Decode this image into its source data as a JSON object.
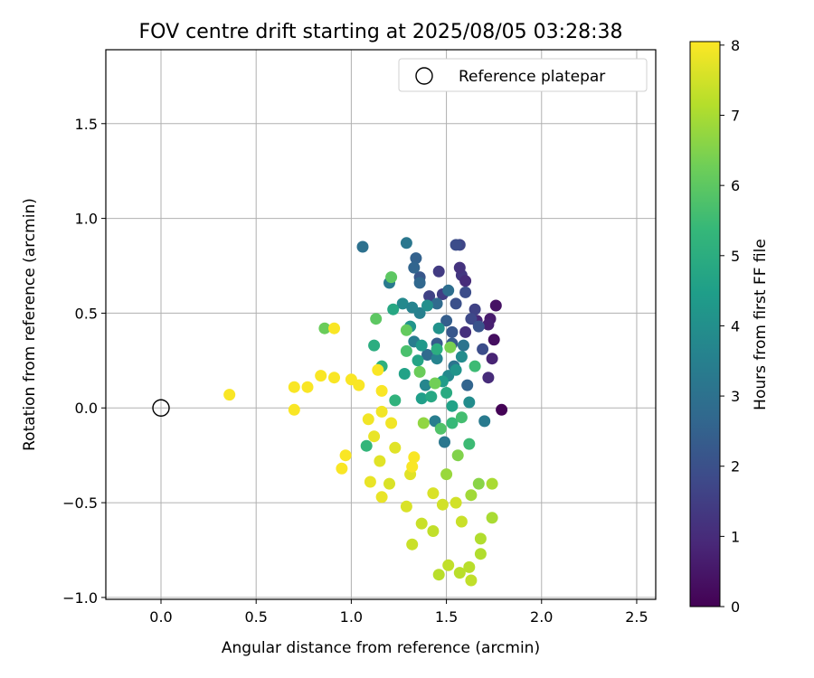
{
  "chart_data": {
    "type": "scatter",
    "title": "FOV centre drift starting at 2025/08/05 03:28:38",
    "xlabel": "Angular distance from reference (arcmin)",
    "ylabel": "Rotation from reference (arcmin)",
    "xlim": [
      -0.29,
      2.6
    ],
    "ylim": [
      -1.01,
      1.89
    ],
    "xticks": [
      0.0,
      0.5,
      1.0,
      1.5,
      2.0,
      2.5
    ],
    "xtick_labels": [
      "0.0",
      "0.5",
      "1.0",
      "1.5",
      "2.0",
      "2.5"
    ],
    "yticks": [
      -1.0,
      -0.5,
      0.0,
      0.5,
      1.0,
      1.5
    ],
    "ytick_labels": [
      "−1.0",
      "−0.5",
      "0.0",
      "0.5",
      "1.0",
      "1.5"
    ],
    "grid": true,
    "legend": {
      "location": "upper right",
      "entries": [
        "Reference platepar"
      ]
    },
    "reference_point": {
      "label": "Reference platepar",
      "x": 0.0,
      "y": 0.0,
      "marker": "open-circle"
    },
    "colorbar": {
      "label": "Hours from first FF file",
      "min": 0,
      "max": 8.05,
      "ticks": [
        0,
        1,
        2,
        3,
        4,
        5,
        6,
        7,
        8
      ],
      "tick_labels": [
        "0",
        "1",
        "2",
        "3",
        "4",
        "5",
        "6",
        "7",
        "8"
      ],
      "colormap": "viridis",
      "colormap_stops": [
        "#440154",
        "#482878",
        "#3e4989",
        "#31688e",
        "#26828e",
        "#1f9e89",
        "#35b779",
        "#6ece58",
        "#b5de2b",
        "#fde725"
      ]
    },
    "series": [
      {
        "color_by": "hours",
        "points": [
          [
            1.79,
            -0.01,
            0.05
          ],
          [
            1.75,
            0.36,
            0.3
          ],
          [
            1.76,
            0.54,
            0.4
          ],
          [
            1.73,
            0.47,
            0.6
          ],
          [
            1.72,
            0.44,
            0.7
          ],
          [
            1.74,
            0.26,
            0.8
          ],
          [
            1.72,
            0.16,
            1.0
          ],
          [
            1.66,
            0.46,
            0.9
          ],
          [
            1.6,
            0.4,
            1.1
          ],
          [
            1.58,
            0.7,
            1.3
          ],
          [
            1.57,
            0.74,
            1.2
          ],
          [
            1.6,
            0.67,
            1.0
          ],
          [
            1.46,
            0.72,
            1.4
          ],
          [
            1.41,
            0.59,
            1.6
          ],
          [
            1.48,
            0.6,
            1.5
          ],
          [
            1.57,
            0.86,
            1.7
          ],
          [
            1.55,
            0.86,
            1.9
          ],
          [
            1.65,
            0.52,
            1.6
          ],
          [
            1.63,
            0.47,
            1.8
          ],
          [
            1.55,
            0.55,
            2.0
          ],
          [
            1.6,
            0.61,
            1.9
          ],
          [
            1.69,
            0.31,
            1.9
          ],
          [
            1.67,
            0.43,
            2.1
          ],
          [
            1.53,
            0.4,
            2.2
          ],
          [
            1.45,
            0.34,
            2.3
          ],
          [
            1.5,
            0.46,
            2.4
          ],
          [
            1.53,
            0.34,
            2.3
          ],
          [
            1.61,
            0.12,
            2.6
          ],
          [
            1.36,
            0.69,
            2.2
          ],
          [
            1.34,
            0.79,
            2.5
          ],
          [
            1.33,
            0.74,
            2.6
          ],
          [
            1.36,
            0.66,
            2.7
          ],
          [
            1.45,
            0.55,
            2.8
          ],
          [
            1.4,
            0.28,
            2.8
          ],
          [
            1.51,
            0.62,
            2.9
          ],
          [
            1.59,
            0.33,
            3.1
          ],
          [
            1.7,
            -0.07,
            3.3
          ],
          [
            1.54,
            0.22,
            3.1
          ],
          [
            1.44,
            -0.07,
            3.4
          ],
          [
            1.49,
            -0.18,
            3.2
          ],
          [
            1.06,
            0.85,
            3.0
          ],
          [
            1.29,
            0.87,
            3.2
          ],
          [
            1.2,
            0.66,
            3.3
          ],
          [
            1.36,
            0.5,
            3.5
          ],
          [
            1.33,
            0.35,
            3.4
          ],
          [
            1.39,
            0.12,
            3.7
          ],
          [
            1.45,
            0.26,
            3.6
          ],
          [
            1.51,
            0.17,
            3.8
          ],
          [
            1.58,
            0.27,
            3.9
          ],
          [
            1.62,
            0.03,
            3.9
          ],
          [
            1.27,
            0.55,
            3.8
          ],
          [
            1.32,
            0.53,
            3.6
          ],
          [
            1.4,
            0.54,
            4.0
          ],
          [
            1.46,
            0.42,
            4.1
          ],
          [
            1.55,
            0.2,
            4.2
          ],
          [
            1.31,
            0.43,
            4.2
          ],
          [
            1.37,
            0.33,
            4.3
          ],
          [
            1.48,
            0.14,
            4.4
          ],
          [
            1.37,
            0.05,
            4.5
          ],
          [
            1.53,
            0.01,
            4.6
          ],
          [
            1.28,
            0.18,
            4.6
          ],
          [
            1.35,
            0.25,
            4.7
          ],
          [
            1.42,
            0.06,
            4.8
          ],
          [
            1.5,
            0.08,
            4.9
          ],
          [
            1.45,
            0.31,
            5.0
          ],
          [
            1.22,
            0.52,
            4.8
          ],
          [
            1.12,
            0.33,
            5.0
          ],
          [
            1.16,
            0.22,
            5.1
          ],
          [
            1.23,
            0.04,
            5.2
          ],
          [
            1.08,
            -0.2,
            5.3
          ],
          [
            1.62,
            -0.19,
            5.5
          ],
          [
            1.53,
            -0.08,
            5.4
          ],
          [
            1.58,
            -0.05,
            5.6
          ],
          [
            1.65,
            0.22,
            5.5
          ],
          [
            1.29,
            0.3,
            5.7
          ],
          [
            1.47,
            -0.11,
            5.8
          ],
          [
            1.21,
            0.69,
            6.0
          ],
          [
            1.13,
            0.47,
            6.0
          ],
          [
            1.29,
            0.41,
            6.1
          ],
          [
            1.36,
            0.19,
            6.2
          ],
          [
            0.86,
            0.42,
            6.2
          ],
          [
            1.44,
            0.13,
            6.3
          ],
          [
            1.52,
            0.32,
            6.4
          ],
          [
            1.56,
            -0.25,
            6.5
          ],
          [
            1.67,
            -0.4,
            6.6
          ],
          [
            1.38,
            -0.08,
            6.7
          ],
          [
            1.5,
            -0.35,
            6.8
          ],
          [
            1.63,
            -0.46,
            6.9
          ],
          [
            1.74,
            -0.4,
            7.0
          ],
          [
            1.74,
            -0.58,
            7.0
          ],
          [
            1.68,
            -0.69,
            7.1
          ],
          [
            1.68,
            -0.77,
            7.1
          ],
          [
            1.62,
            -0.84,
            7.2
          ],
          [
            1.57,
            -0.87,
            7.2
          ],
          [
            1.63,
            -0.91,
            7.3
          ],
          [
            1.46,
            -0.88,
            7.2
          ],
          [
            1.51,
            -0.83,
            7.3
          ],
          [
            1.43,
            -0.65,
            7.3
          ],
          [
            1.37,
            -0.61,
            7.4
          ],
          [
            1.32,
            -0.72,
            7.4
          ],
          [
            1.58,
            -0.6,
            7.4
          ],
          [
            1.55,
            -0.5,
            7.5
          ],
          [
            1.48,
            -0.51,
            7.5
          ],
          [
            1.43,
            -0.45,
            7.6
          ],
          [
            1.29,
            -0.52,
            7.6
          ],
          [
            1.2,
            -0.4,
            7.6
          ],
          [
            1.15,
            -0.28,
            7.7
          ],
          [
            1.23,
            -0.21,
            7.7
          ],
          [
            1.31,
            -0.35,
            7.7
          ],
          [
            1.16,
            -0.47,
            7.8
          ],
          [
            1.12,
            -0.15,
            7.8
          ],
          [
            1.1,
            -0.39,
            7.8
          ],
          [
            1.16,
            -0.02,
            7.9
          ],
          [
            1.09,
            -0.06,
            7.9
          ],
          [
            1.21,
            -0.08,
            7.9
          ],
          [
            1.32,
            -0.31,
            8.0
          ],
          [
            1.33,
            -0.26,
            8.0
          ],
          [
            1.16,
            0.09,
            8.0
          ],
          [
            1.14,
            0.2,
            8.0
          ],
          [
            0.91,
            0.42,
            8.0
          ],
          [
            0.97,
            -0.25,
            8.0
          ],
          [
            0.95,
            -0.32,
            8.0
          ],
          [
            0.36,
            0.07,
            8.0
          ],
          [
            0.7,
            0.11,
            8.0
          ],
          [
            0.7,
            -0.01,
            8.0
          ],
          [
            0.77,
            0.11,
            8.0
          ],
          [
            0.84,
            0.17,
            8.0
          ],
          [
            0.91,
            0.16,
            8.0
          ],
          [
            1.0,
            0.15,
            8.0
          ],
          [
            1.04,
            0.12,
            8.0
          ]
        ]
      }
    ]
  }
}
